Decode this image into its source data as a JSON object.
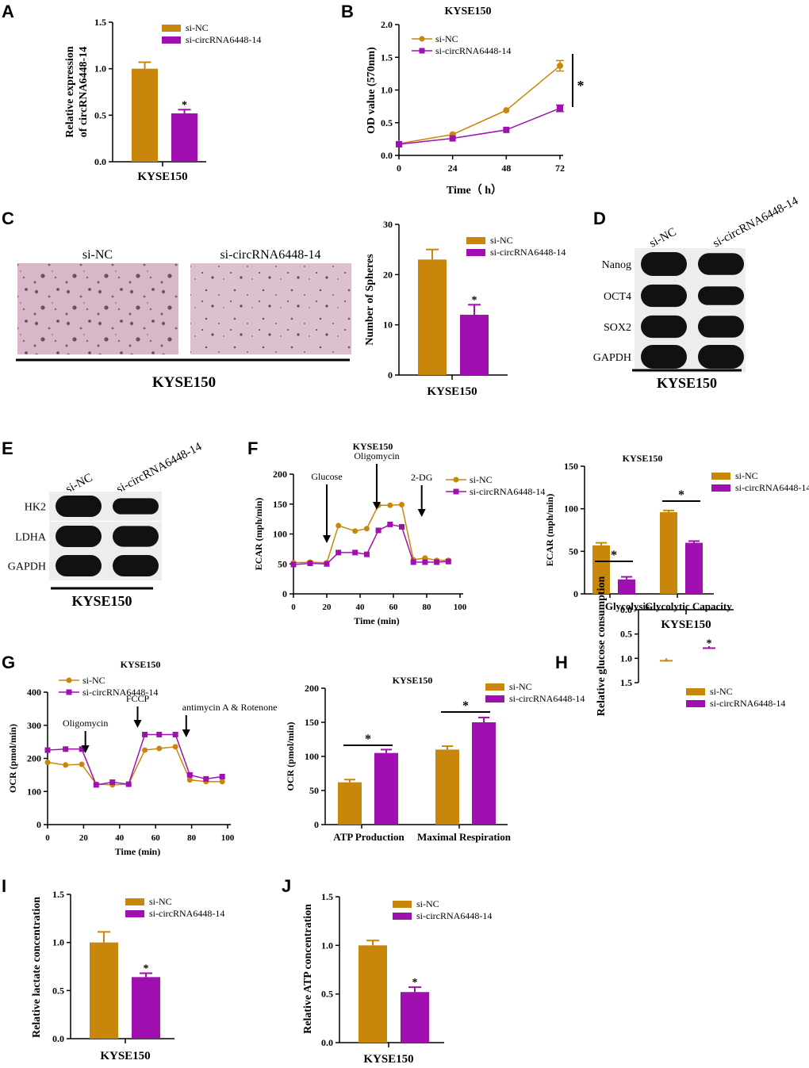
{
  "panels": {
    "A": "A",
    "B": "B",
    "C": "C",
    "D": "D",
    "E": "E",
    "F": "F",
    "G": "G",
    "H": "H",
    "I": "I",
    "J": "J"
  },
  "colors": {
    "siNC": "#c8870a",
    "siCirc": "#a010b0"
  },
  "images": {
    "label1": "si-NC",
    "label2": "si-circRNA6448-14",
    "cellLine": "KYSE150"
  },
  "blots": {
    "D": {
      "lanes": [
        "si-NC",
        "si-circRNA6448-14"
      ],
      "bands": [
        "Nanog",
        "OCT4",
        "SOX2",
        "GAPDH"
      ],
      "intensity": [
        [
          1.0,
          0.85
        ],
        [
          0.9,
          0.6
        ],
        [
          0.9,
          0.85
        ],
        [
          1.0,
          1.0
        ]
      ],
      "cellLine": "KYSE150"
    },
    "E": {
      "lanes": [
        "si-NC",
        "si-circRNA6448-14"
      ],
      "bands": [
        "HK2",
        "LDHA",
        "GAPDH"
      ],
      "intensity": [
        [
          1.0,
          0.55
        ],
        [
          1.0,
          0.95
        ],
        [
          1.0,
          1.0
        ]
      ],
      "cellLine": "KYSE150"
    }
  },
  "chart_data": [
    {
      "id": "A",
      "type": "bar",
      "title": "",
      "xlabel": "KYSE150",
      "ylabel": "Relative expression of circRNA6448-14",
      "ylim": [
        0,
        1.5
      ],
      "yticks": [
        "0.0",
        "0.5",
        "1.0",
        "1.5"
      ],
      "legend": [
        "si-NC",
        "si-circRNA6448-14"
      ],
      "categories": [
        "si-NC",
        "si-circRNA6448-14"
      ],
      "values": [
        1.0,
        0.52
      ],
      "errors": [
        0.07,
        0.04
      ],
      "significance": [
        "",
        "*"
      ]
    },
    {
      "id": "B",
      "type": "line",
      "title": "KYSE150",
      "xlabel": "Time（ h）",
      "ylabel": "OD value (570nm)",
      "x": [
        0,
        24,
        48,
        72
      ],
      "xticks": [
        "0",
        "24",
        "48",
        "72"
      ],
      "ylim": [
        0,
        2.0
      ],
      "yticks": [
        "0.0",
        "0.5",
        "1.0",
        "1.5",
        "2.0"
      ],
      "series": [
        {
          "name": "si-NC",
          "values": [
            0.18,
            0.32,
            0.69,
            1.37
          ],
          "errors": [
            0.02,
            0.02,
            0.02,
            0.08
          ]
        },
        {
          "name": "si-circRNA6448-14",
          "values": [
            0.17,
            0.26,
            0.39,
            0.72
          ],
          "errors": [
            0.02,
            0.02,
            0.02,
            0.05
          ]
        }
      ],
      "significance": "*"
    },
    {
      "id": "C",
      "type": "bar",
      "title": "",
      "xlabel": "KYSE150",
      "ylabel": "Number of Spheres",
      "ylim": [
        0,
        30
      ],
      "yticks": [
        "0",
        "10",
        "20",
        "30"
      ],
      "legend": [
        "si-NC",
        "si-circRNA6448-14"
      ],
      "categories": [
        "si-NC",
        "si-circRNA6448-14"
      ],
      "values": [
        23,
        12
      ],
      "errors": [
        2,
        2
      ],
      "significance": [
        "",
        "*"
      ]
    },
    {
      "id": "F1",
      "type": "line",
      "title": "KYSE150",
      "xlabel": "Time (min)",
      "ylabel": "ECAR (mph/min)",
      "xlim": [
        0,
        100
      ],
      "xticks": [
        "0",
        "20",
        "40",
        "60",
        "80",
        "100"
      ],
      "ylim": [
        0,
        200
      ],
      "yticks": [
        "0",
        "50",
        "100",
        "150",
        "200"
      ],
      "series": [
        {
          "name": "si-NC",
          "x": [
            0,
            10,
            20,
            27,
            37,
            44,
            51,
            58,
            65,
            72,
            79,
            86,
            93
          ],
          "values": [
            52,
            53,
            52,
            114,
            105,
            109,
            148,
            148,
            149,
            57,
            60,
            56,
            56
          ]
        },
        {
          "name": "si-circRNA6448-14",
          "x": [
            0,
            10,
            20,
            27,
            37,
            44,
            51,
            58,
            65,
            72,
            79,
            86,
            93
          ],
          "values": [
            49,
            51,
            50,
            69,
            69,
            66,
            106,
            116,
            112,
            53,
            53,
            53,
            54
          ]
        }
      ],
      "annotations": [
        {
          "text": "Glucose",
          "x": 20
        },
        {
          "text": "Oligomycin",
          "x": 50
        },
        {
          "text": "2-DG",
          "x": 77
        }
      ]
    },
    {
      "id": "F2",
      "type": "bar",
      "title": "KYSE150",
      "xlabel": "",
      "ylabel": "ECAR (mph/min)",
      "ylim": [
        0,
        150
      ],
      "yticks": [
        "0",
        "50",
        "100",
        "150"
      ],
      "legend": [
        "si-NC",
        "si-circRNA6448-14"
      ],
      "categories": [
        "Glycolysis",
        "Glycolytic Capacity"
      ],
      "series": [
        {
          "name": "si-NC",
          "values": [
            57,
            96
          ],
          "errors": [
            3,
            2
          ]
        },
        {
          "name": "si-circRNA6448-14",
          "values": [
            17,
            60
          ],
          "errors": [
            3,
            2
          ]
        }
      ],
      "significance": [
        "*",
        "*"
      ]
    },
    {
      "id": "G1",
      "type": "line",
      "title": "KYSE150",
      "xlabel": "Time (min)",
      "ylabel": "OCR (pmol/min)",
      "xlim": [
        0,
        100
      ],
      "xticks": [
        "0",
        "20",
        "40",
        "60",
        "80",
        "100"
      ],
      "ylim": [
        0,
        400
      ],
      "yticks": [
        "0",
        "100",
        "200",
        "300",
        "400"
      ],
      "series": [
        {
          "name": "si-NC",
          "x": [
            0,
            10,
            19,
            27,
            36,
            45,
            54,
            62,
            71,
            79,
            88,
            97
          ],
          "values": [
            188,
            180,
            182,
            122,
            120,
            122,
            225,
            230,
            235,
            135,
            130,
            130
          ]
        },
        {
          "name": "si-circRNA6448-14",
          "x": [
            0,
            10,
            19,
            27,
            36,
            45,
            54,
            62,
            71,
            79,
            88,
            97
          ],
          "values": [
            225,
            228,
            228,
            120,
            128,
            122,
            272,
            272,
            272,
            150,
            138,
            145
          ]
        }
      ],
      "annotations": [
        {
          "text": "Oligomycin",
          "x": 21
        },
        {
          "text": "FCCP",
          "x": 50
        },
        {
          "text": "antimycin A & Rotenone",
          "x": 77
        }
      ]
    },
    {
      "id": "G2",
      "type": "bar",
      "title": "KYSE150",
      "xlabel": "",
      "ylabel": "OCR (pmol/min)",
      "ylim": [
        0,
        200
      ],
      "yticks": [
        "0",
        "50",
        "100",
        "150",
        "200"
      ],
      "legend": [
        "si-NC",
        "si-circRNA6448-14"
      ],
      "categories": [
        "ATP Production",
        "Maximal Respiration"
      ],
      "series": [
        {
          "name": "si-NC",
          "values": [
            62,
            110
          ],
          "errors": [
            4,
            5
          ]
        },
        {
          "name": "si-circRNA6448-14",
          "values": [
            105,
            150
          ],
          "errors": [
            5,
            7
          ]
        }
      ],
      "significance": [
        "*",
        "*"
      ]
    },
    {
      "id": "H",
      "type": "bar",
      "title": "",
      "xlabel": "KYSE150",
      "ylabel": "Relative glucose consumption",
      "ylim": [
        0,
        1.5
      ],
      "yticks": [
        "0.0",
        "0.5",
        "1.0",
        "1.5"
      ],
      "legend": [
        "si-NC",
        "si-circRNA6448-14"
      ],
      "categories": [
        "si-NC",
        "si-circRNA6448-14"
      ],
      "values": [
        1.0,
        0.75
      ],
      "errors": [
        0.05,
        0.04
      ],
      "significance": [
        "",
        "*"
      ]
    },
    {
      "id": "I",
      "type": "bar",
      "title": "",
      "xlabel": "KYSE150",
      "ylabel": "Relative lactate concentration",
      "ylim": [
        0,
        1.5
      ],
      "yticks": [
        "0.0",
        "0.5",
        "1.0",
        "1.5"
      ],
      "legend": [
        "si-NC",
        "si-circRNA6448-14"
      ],
      "categories": [
        "si-NC",
        "si-circRNA6448-14"
      ],
      "values": [
        1.0,
        0.64
      ],
      "errors": [
        0.11,
        0.04
      ],
      "significance": [
        "",
        "*"
      ]
    },
    {
      "id": "J",
      "type": "bar",
      "title": "",
      "xlabel": "KYSE150",
      "ylabel": "Relative ATP concentration",
      "ylim": [
        0,
        1.5
      ],
      "yticks": [
        "0.0",
        "0.5",
        "1.0",
        "1.5"
      ],
      "legend": [
        "si-NC",
        "si-circRNA6448-14"
      ],
      "categories": [
        "si-NC",
        "si-circRNA6448-14"
      ],
      "values": [
        1.0,
        0.52
      ],
      "errors": [
        0.05,
        0.05
      ],
      "significance": [
        "",
        "*"
      ]
    }
  ]
}
